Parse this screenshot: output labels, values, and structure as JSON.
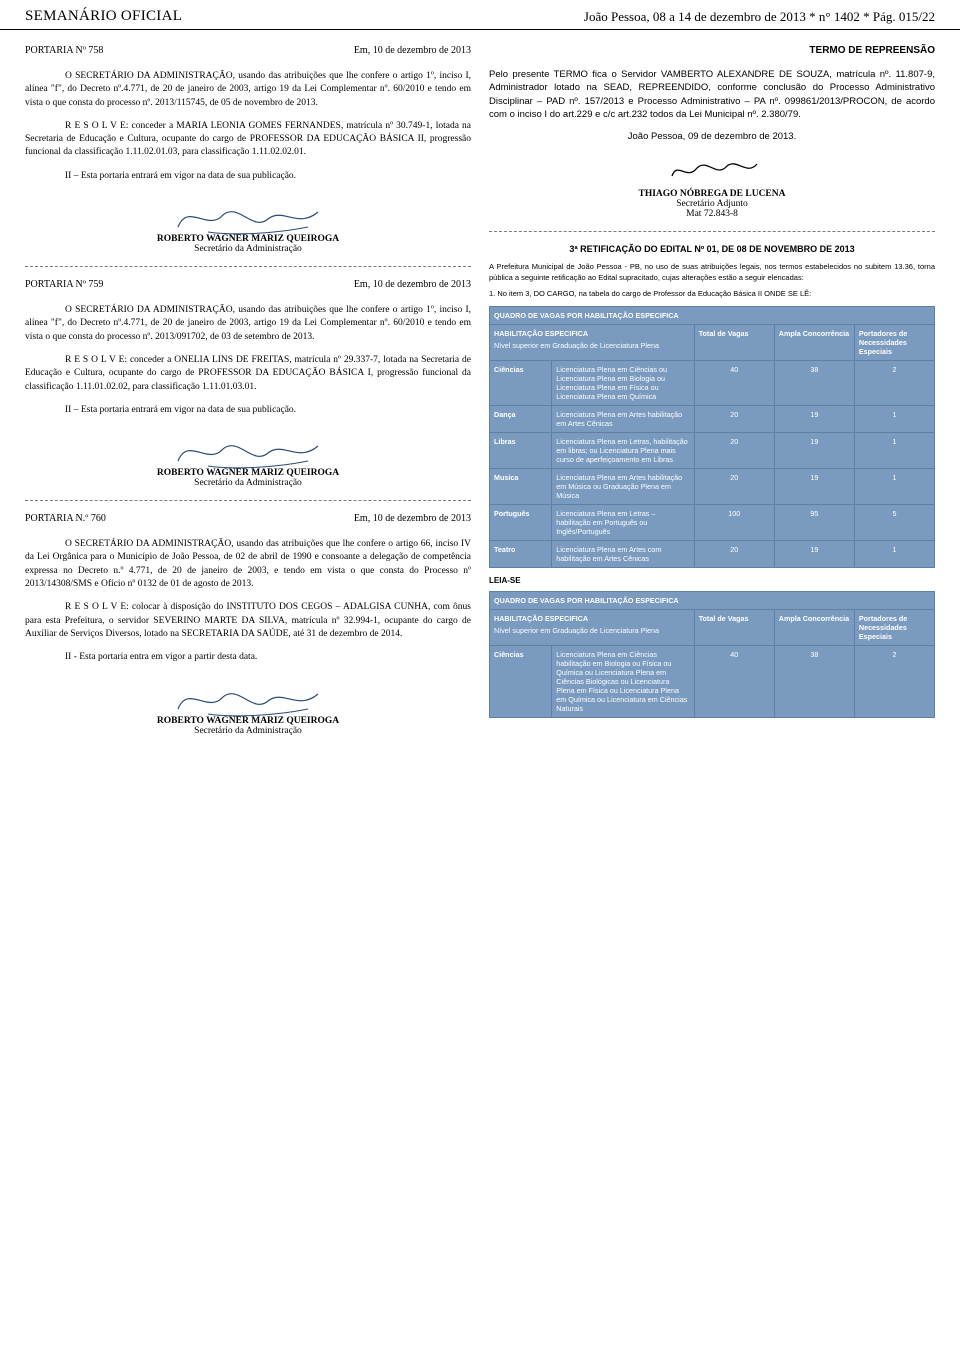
{
  "header": {
    "left": "SEMANÁRIO OFICIAL",
    "right": "João Pessoa, 08 a 14 de dezembro de 2013   *   n° 1402   *   Pág. 015/22"
  },
  "left": {
    "port758": {
      "num": "PORTARIA Nº 758",
      "date": "Em, 10 de dezembro de 2013",
      "p1": "O SECRETÁRIO DA ADMINISTRAÇÃO, usando das atribuições que lhe confere o artigo 1º, inciso I, alínea \"f\", do Decreto nº.4.771, de 20 de janeiro de 2003, artigo 19 da Lei Complementar nº. 60/2010 e tendo em vista o que consta do processo nº. 2013/115745, de 05 de novembro de 2013.",
      "p2": "R E S O L V E: conceder a MARIA LEONIA GOMES FERNANDES, matrícula nº 30.749-1, lotada na Secretaria de Educação e Cultura, ocupante do cargo de PROFESSOR DA EDUCAÇÃO BÁSICA II, progressão funcional da classificação 1.11.02.01.03, para classificação 1.11.02.02.01.",
      "p3": "II – Esta portaria entrará em vigor na data de sua publicação."
    },
    "sig_roberto": {
      "name": "ROBERTO WAGNER MARIZ QUEIROGA",
      "title": "Secretário da Administração"
    },
    "port759": {
      "num": "PORTARIA Nº 759",
      "date": "Em, 10 de dezembro de 2013",
      "p1": "O SECRETÁRIO DA ADMINISTRAÇÃO, usando das atribuições que lhe confere o artigo 1º, inciso I, alínea \"f\", do Decreto nº.4.771, de 20 de janeiro de 2003, artigo 19 da Lei Complementar nº. 60/2010 e tendo em vista o que consta do processo nº. 2013/091702, de 03 de setembro de 2013.",
      "p2": "R E S O L V E: conceder a ONELIA LINS DE FREITAS, matrícula nº 29.337-7, lotada na Secretaria de Educação e Cultura, ocupante do cargo de PROFESSOR DA EDUCAÇÃO BÁSICA I, progressão funcional da classificação 1.11.01.02.02, para classificação 1.11.01.03.01.",
      "p3": "II – Esta portaria entrará em vigor na data de sua publicação."
    },
    "port760": {
      "num": "PORTARIA N.º 760",
      "date": "Em, 10 de dezembro de 2013",
      "p1": "O SECRETÁRIO DA ADMINISTRAÇÃO, usando das atribuições que lhe confere o artigo 66, inciso IV da Lei Orgânica para o Município de João Pessoa, de 02 de abril de 1990 e consoante a delegação de competência expressa no Decreto n.º 4.771, de 20 de janeiro de 2003, e tendo em vista o que consta do Processo nº 2013/14308/SMS e Ofício nº 0132 de 01 de agosto de 2013.",
      "p2": "R E S O L V E: colocar à disposição do INSTITUTO DOS CEGOS – ADALGISA CUNHA, com ônus para esta Prefeitura, o servidor SEVERINO MARTE DA SILVA, matrícula nº 32.994-1, ocupante do cargo de Auxiliar de Serviços Diversos, lotado na SECRETARIA DA SAÚDE, até 31 de dezembro de 2014.",
      "p3": "II - Esta portaria entra em vigor a partir desta data."
    }
  },
  "right": {
    "termo": {
      "title": "TERMO DE REPREENSÃO",
      "p1": "Pelo presente TERMO fica o Servidor VAMBERTO ALEXANDRE DE SOUZA, matrícula nº. 11.807-9, Administrador lotado na SEAD, REPREENDIDO, conforme conclusão do Processo Administrativo Disciplinar – PAD nº. 157/2013 e Processo Administrativo – PA nº. 099861/2013/PROCON, de acordo com o inciso I do art.229 e c/c art.232 todos da Lei Municipal nº. 2.380/79.",
      "citydate": "João Pessoa, 09 de dezembro de 2013.",
      "sig_name": "THIAGO NÓBREGA DE LUCENA",
      "sig_title": "Secretário Adjunto",
      "sig_mat": "Mat 72.843-8"
    },
    "retif": {
      "title": "3ª RETIFICAÇÃO DO EDITAL Nº 01, DE 08 DE NOVEMBRO DE 2013",
      "p1": "A Prefeitura Municipal de João Pessoa - PB, no uso de suas atribuições legais, nos termos estabelecidos no subitem 13.36, torna pública a seguinte retificação ao Edital supracitado, cujas alterações estão a seguir elencadas:",
      "p2": "1. No item 3, DO CARGO, na tabela do cargo de Professor da Educação Básica II ONDE SE LÊ:"
    },
    "quadro_title": "QUADRO DE VAGAS POR HABILITAÇÃO ESPECIFICA",
    "tbl_headers": {
      "c1a": "HABILITAÇÃO ESPECIFICA",
      "c1b": "Nível superior em Graduação de Licenciatura Plena",
      "c2": "Total de Vagas",
      "c3": "Ampla Concorrência",
      "c4": "Portadores de Necessidades Especiais"
    },
    "tbl1": {
      "rows": [
        {
          "h": "Ciências",
          "d": "Licenciatura Plena em Ciências ou Licenciatura Plena em Biologia ou Licenciatura Plena em Física ou Licenciatura Plena em Química",
          "t": "40",
          "a": "38",
          "p": "2"
        },
        {
          "h": "Dança",
          "d": "Licenciatura Plena em Artes habilitação em Artes Cênicas",
          "t": "20",
          "a": "19",
          "p": "1"
        },
        {
          "h": "Libras",
          "d": "Licenciatura Plena em Letras, habilitação em libras; ou Licenciatura Plena mais curso de aperfeiçoamento em Libras",
          "t": "20",
          "a": "19",
          "p": "1"
        },
        {
          "h": "Musica",
          "d": "Licenciatura Plena em Artes habilitação em Música ou Graduação Plena em Música",
          "t": "20",
          "a": "19",
          "p": "1"
        },
        {
          "h": "Português",
          "d": "Licenciatura Plena em Letras – habilitação em Português ou Inglês/Português",
          "t": "100",
          "a": "95",
          "p": "5"
        },
        {
          "h": "Teatro",
          "d": "Licenciatura Plena em Artes com habilitação em Artes Cênicas",
          "t": "20",
          "a": "19",
          "p": "1"
        }
      ]
    },
    "leia": "LEIA-SE",
    "tbl2": {
      "rows": [
        {
          "h": "Ciências",
          "d": "Licenciatura Plena em Ciências habilitação em Biologia ou Física ou Química ou Licenciatura Plena em Ciências Biológicas ou Licenciatura Plena em Física ou Licenciatura Plena em Química ou Licenciatura em Ciências Naturais",
          "t": "40",
          "a": "38",
          "p": "2"
        }
      ]
    }
  },
  "colors": {
    "table_bg": "#7a9ac0",
    "table_border": "#5f7fa5",
    "dash": "#7a7a7a"
  }
}
